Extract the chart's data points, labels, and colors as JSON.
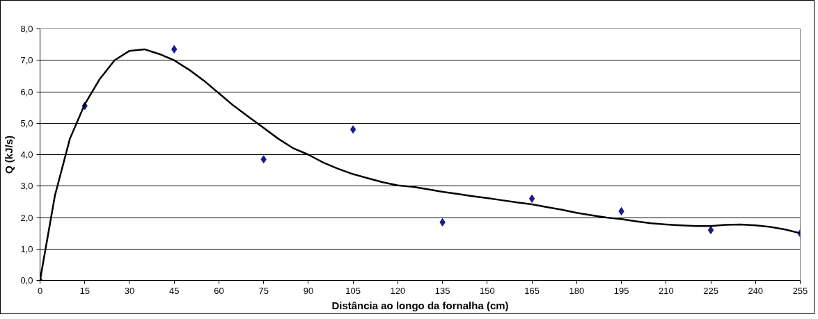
{
  "chart_data": {
    "type": "scatter",
    "xlabel": "Distância ao longo da fornalha (cm)",
    "ylabel": "Q (kJ/s)",
    "xlim": [
      0,
      255
    ],
    "ylim": [
      0,
      8
    ],
    "xticks": [
      0,
      15,
      30,
      45,
      60,
      75,
      90,
      105,
      120,
      135,
      150,
      165,
      180,
      195,
      210,
      225,
      240,
      255
    ],
    "yticks": [
      {
        "value": 0,
        "label": "0,0"
      },
      {
        "value": 1,
        "label": "1,0"
      },
      {
        "value": 2,
        "label": "2,0"
      },
      {
        "value": 3,
        "label": "3,0"
      },
      {
        "value": 4,
        "label": "4,0"
      },
      {
        "value": 5,
        "label": "5,0"
      },
      {
        "value": 6,
        "label": "6,0"
      },
      {
        "value": 7,
        "label": "7,0"
      },
      {
        "value": 8,
        "label": "8,0"
      }
    ],
    "grid": "y",
    "series": [
      {
        "marker": "diamond",
        "color": "#1a1a8c",
        "x": [
          0,
          15,
          45,
          75,
          105,
          135,
          165,
          195,
          225,
          255
        ],
        "values": [
          0,
          5.55,
          7.35,
          3.85,
          4.8,
          1.85,
          2.6,
          2.2,
          1.6,
          1.5
        ]
      },
      {
        "type": "line",
        "marker": "none",
        "color": "#000000",
        "x": [
          0,
          5,
          10,
          15,
          20,
          25,
          30,
          35,
          40,
          45,
          50,
          55,
          60,
          65,
          70,
          75,
          80,
          85,
          90,
          95,
          100,
          105,
          110,
          115,
          120,
          125,
          130,
          135,
          140,
          145,
          150,
          155,
          160,
          165,
          170,
          175,
          180,
          185,
          190,
          195,
          200,
          205,
          210,
          215,
          220,
          225,
          230,
          235,
          240,
          245,
          250,
          255
        ],
        "values": [
          0,
          2.7,
          4.5,
          5.6,
          6.4,
          7.0,
          7.3,
          7.35,
          7.2,
          7.0,
          6.7,
          6.35,
          5.95,
          5.55,
          5.2,
          4.85,
          4.5,
          4.2,
          4.0,
          3.75,
          3.55,
          3.38,
          3.25,
          3.12,
          3.02,
          2.98,
          2.9,
          2.82,
          2.75,
          2.68,
          2.62,
          2.55,
          2.48,
          2.42,
          2.33,
          2.25,
          2.15,
          2.07,
          2.0,
          1.95,
          1.88,
          1.82,
          1.78,
          1.75,
          1.73,
          1.73,
          1.77,
          1.78,
          1.75,
          1.7,
          1.62,
          1.5
        ]
      }
    ]
  }
}
